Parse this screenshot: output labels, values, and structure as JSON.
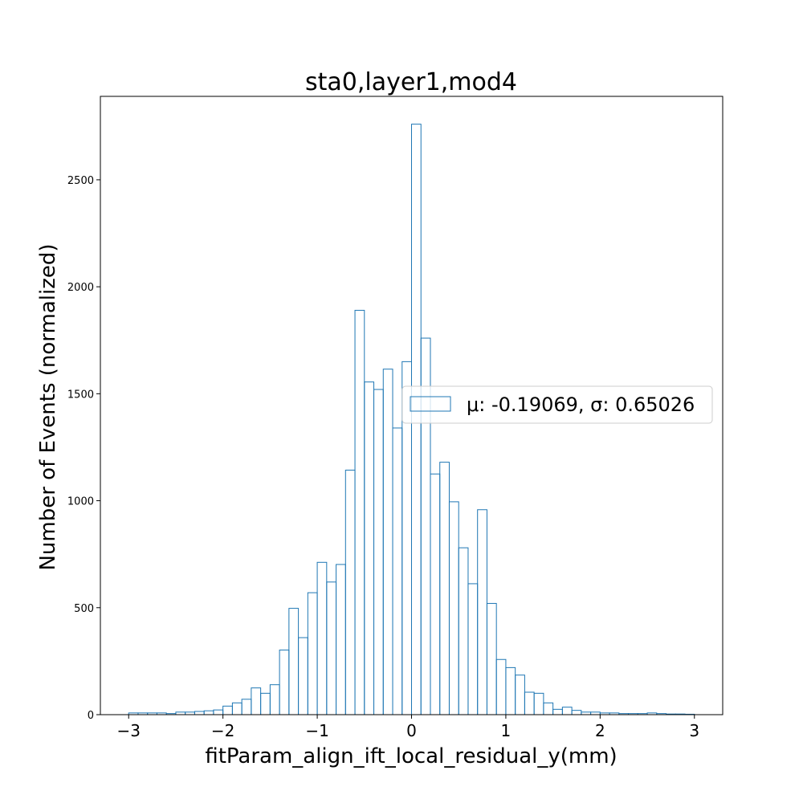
{
  "chart_data": {
    "type": "histogram",
    "title": "sta0,layer1,mod4",
    "xlabel": "fitParam_align_ift_local_residual_y(mm)",
    "ylabel": "Number of Events (normalized)",
    "xlim": [
      -3.3,
      3.3
    ],
    "ylim": [
      0,
      2890
    ],
    "xticks": [
      -3,
      -2,
      -1,
      0,
      1,
      2,
      3
    ],
    "xtick_labels": [
      "−3",
      "−2",
      "−1",
      "0",
      "1",
      "2",
      "3"
    ],
    "yticks": [
      0,
      500,
      1000,
      1500,
      2000,
      2500
    ],
    "ytick_labels": [
      "0",
      "500",
      "1000",
      "1500",
      "2000",
      "2500"
    ],
    "bin_start": -3,
    "bin_width": 0.1,
    "counts": [
      8,
      8,
      8,
      8,
      5,
      12,
      12,
      15,
      18,
      22,
      40,
      55,
      72,
      125,
      100,
      140,
      302,
      497,
      360,
      570,
      712,
      620,
      702,
      1143,
      1890,
      1555,
      1520,
      1615,
      1340,
      1650,
      2760,
      1760,
      1125,
      1180,
      995,
      780,
      612,
      958,
      520,
      258,
      220,
      185,
      105,
      100,
      55,
      25,
      35,
      20,
      12,
      12,
      8,
      8,
      5,
      5,
      5,
      8,
      5,
      3,
      3,
      2
    ],
    "color": "#1f77b4",
    "grid": false,
    "legend": {
      "placement": "center-right",
      "entries": [
        {
          "label": "μ: -0.19069, σ: 0.65026",
          "color": "#1f77b4"
        }
      ]
    }
  }
}
